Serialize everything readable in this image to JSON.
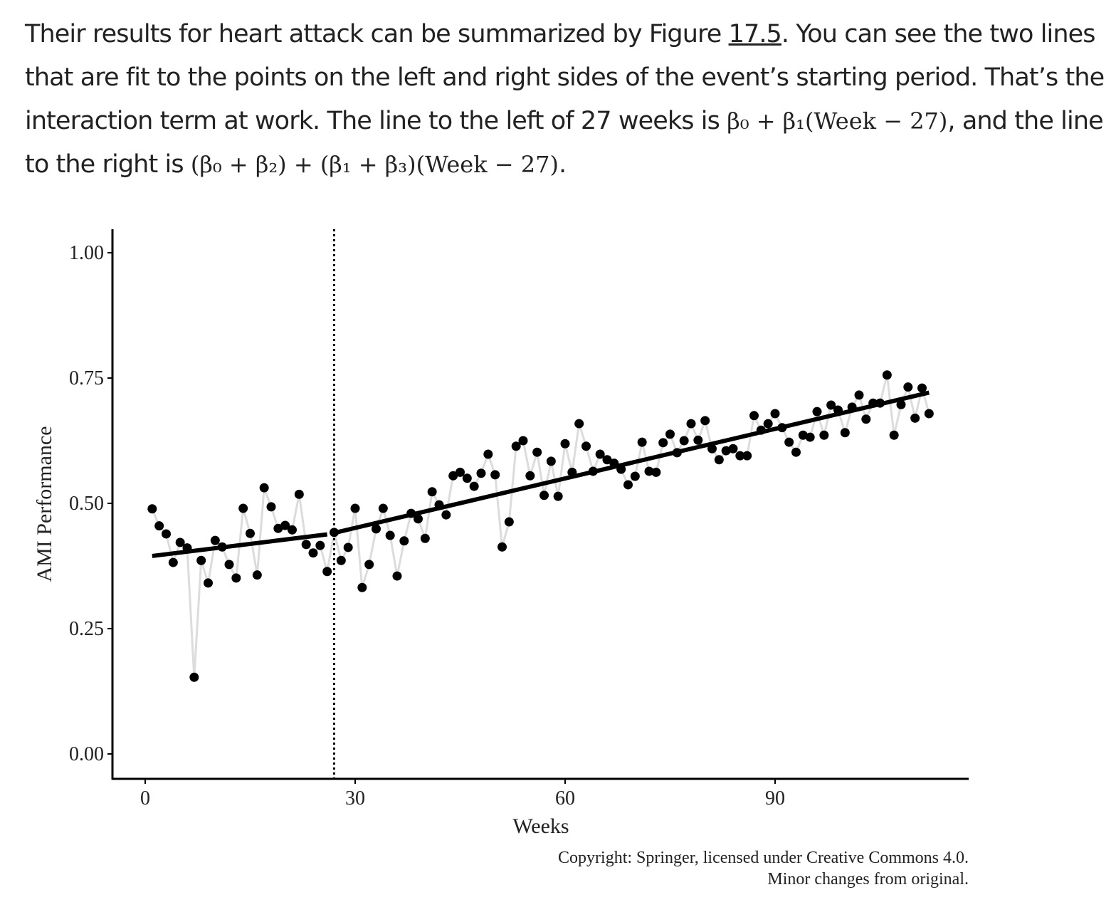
{
  "paragraph": {
    "t1": "Their results for heart attack can be summarized by Figure ",
    "figure_ref": "17.5",
    "t2": ". You can see the two lines that are fit to the points on the left and right sides of the event’s starting period. That’s the interaction term at work. The line to the left of 27 weeks is ",
    "math1": "β₀ + β₁(Week − 27)",
    "t3": ", and the line to the right is ",
    "math2": "(β₀ + β₂) + (β₁ + β₃)(Week − 27)",
    "t4": "."
  },
  "chart_data": {
    "type": "scatter",
    "xlabel": "Weeks",
    "ylabel": "AMI Performance",
    "xlim": [
      -4.5,
      117
    ],
    "ylim": [
      -0.05,
      1.05
    ],
    "x_ticks": [
      "0",
      "30",
      "60",
      "90"
    ],
    "x_tick_values": [
      0,
      30,
      60,
      90
    ],
    "y_ticks": [
      "0.00",
      "0.25",
      "0.50",
      "0.75",
      "1.00"
    ],
    "y_tick_values": [
      0,
      0.25,
      0.5,
      0.75,
      1.0
    ],
    "cutoff_week": 27,
    "points_start_week": 1,
    "values": [
      0.489,
      0.455,
      0.439,
      0.382,
      0.422,
      0.411,
      0.153,
      0.386,
      0.341,
      0.426,
      0.413,
      0.378,
      0.351,
      0.49,
      0.44,
      0.357,
      0.531,
      0.493,
      0.45,
      0.456,
      0.447,
      0.518,
      0.418,
      0.401,
      0.416,
      0.364,
      0.442,
      0.386,
      0.412,
      0.49,
      0.332,
      0.378,
      0.449,
      0.49,
      0.436,
      0.355,
      0.425,
      0.48,
      0.469,
      0.43,
      0.523,
      0.497,
      0.477,
      0.555,
      0.562,
      0.55,
      0.534,
      0.56,
      0.598,
      0.557,
      0.413,
      0.463,
      0.614,
      0.625,
      0.555,
      0.602,
      0.516,
      0.584,
      0.514,
      0.619,
      0.562,
      0.659,
      0.614,
      0.564,
      0.598,
      0.587,
      0.58,
      0.568,
      0.537,
      0.554,
      0.622,
      0.564,
      0.562,
      0.621,
      0.638,
      0.601,
      0.625,
      0.659,
      0.626,
      0.665,
      0.609,
      0.587,
      0.605,
      0.609,
      0.595,
      0.595,
      0.675,
      0.646,
      0.659,
      0.679,
      0.651,
      0.622,
      0.602,
      0.636,
      0.632,
      0.683,
      0.636,
      0.696,
      0.686,
      0.641,
      0.692,
      0.716,
      0.668,
      0.7,
      0.7,
      0.756,
      0.636,
      0.697,
      0.732,
      0.67,
      0.73,
      0.679
    ],
    "fit_lines": [
      {
        "name": "pre",
        "x": [
          1,
          26
        ],
        "y": [
          0.395,
          0.438
        ]
      },
      {
        "name": "post",
        "x": [
          27,
          112
        ],
        "y": [
          0.441,
          0.721
        ]
      }
    ],
    "caption": [
      "Copyright: Springer, licensed under Creative Commons 4.0.",
      "Minor changes from original."
    ]
  }
}
